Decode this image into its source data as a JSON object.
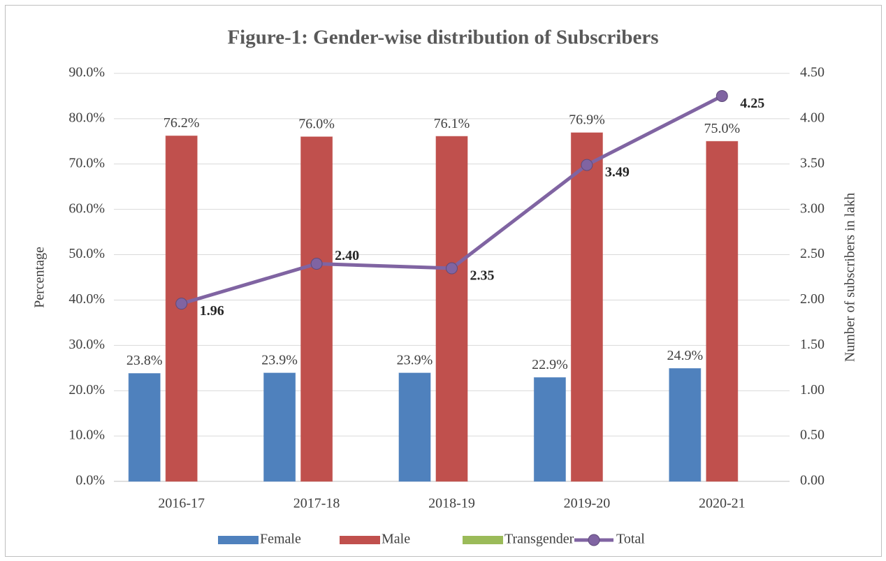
{
  "chart_data": {
    "type": "bar",
    "title": "Figure-1: Gender-wise distribution of Subscribers",
    "y_label": "Percentage",
    "y2_label": "Number of subscribers in lakh",
    "categories": [
      "2016-17",
      "2017-18",
      "2018-19",
      "2019-20",
      "2020-21"
    ],
    "series": [
      {
        "name": "Female",
        "color": "#4f81bd",
        "type": "bar",
        "values": [
          23.8,
          23.9,
          23.9,
          22.9,
          24.9
        ],
        "value_labels": [
          "23.8%",
          "23.9%",
          "23.9%",
          "22.9%",
          "24.9%"
        ]
      },
      {
        "name": "Male",
        "color": "#c0504d",
        "type": "bar",
        "values": [
          76.2,
          76.0,
          76.1,
          76.9,
          75.0
        ],
        "value_labels": [
          "76.2%",
          "76.0%",
          "76.1%",
          "76.9%",
          "75.0%"
        ]
      },
      {
        "name": "Transgender",
        "color": "#9bbb59",
        "type": "bar",
        "values": [
          0,
          0,
          0,
          0,
          0
        ]
      },
      {
        "name": "Total",
        "color": "#8064a2",
        "type": "line",
        "axis": "y2",
        "values": [
          1.96,
          2.4,
          2.35,
          3.49,
          4.25
        ],
        "value_labels": [
          "1.96",
          "2.40",
          "2.35",
          "3.49",
          "4.25"
        ]
      }
    ],
    "ylim": [
      0,
      90
    ],
    "yticks": [
      {
        "value": 0,
        "label": "0.0%"
      },
      {
        "value": 10,
        "label": "10.0%"
      },
      {
        "value": 20,
        "label": "20.0%"
      },
      {
        "value": 30,
        "label": "30.0%"
      },
      {
        "value": 40,
        "label": "40.0%"
      },
      {
        "value": 50,
        "label": "50.0%"
      },
      {
        "value": 60,
        "label": "60.0%"
      },
      {
        "value": 70,
        "label": "70.0%"
      },
      {
        "value": 80,
        "label": "80.0%"
      },
      {
        "value": 90,
        "label": "90.0%"
      }
    ],
    "y2lim": [
      0,
      4.5
    ],
    "y2ticks": [
      {
        "value": 0,
        "label": "0.00"
      },
      {
        "value": 0.5,
        "label": "0.50"
      },
      {
        "value": 1,
        "label": "1.00"
      },
      {
        "value": 1.5,
        "label": "1.50"
      },
      {
        "value": 2,
        "label": "2.00"
      },
      {
        "value": 2.5,
        "label": "2.50"
      },
      {
        "value": 3,
        "label": "3.00"
      },
      {
        "value": 3.5,
        "label": "3.50"
      },
      {
        "value": 4,
        "label": "4.00"
      },
      {
        "value": 4.5,
        "label": "4.50"
      }
    ],
    "grid": true,
    "legend": "bottom"
  }
}
